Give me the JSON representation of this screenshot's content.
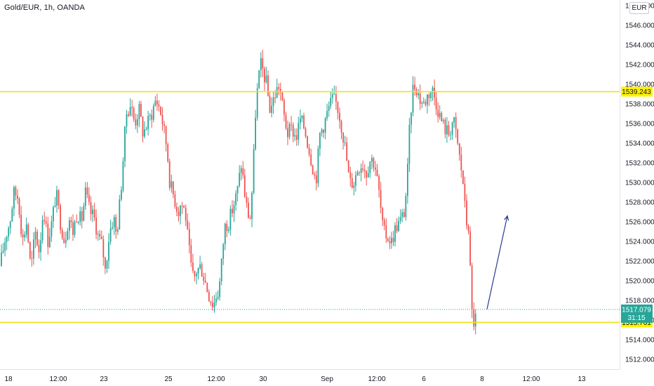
{
  "header": {
    "symbol": "Gold/EUR, 1h, OANDA",
    "currency": "EUR"
  },
  "colors": {
    "up": "#26a69a",
    "down": "#ef5350",
    "level_line": "#f2e018",
    "level_tag": "#fff200",
    "current_tag": "#26a69a",
    "arrow": "#2a3b8f",
    "current_line": "#26a69a"
  },
  "chart_data": {
    "type": "candlestick",
    "title": "Gold/EUR, 1h, OANDA",
    "ylim": [
      1511,
      1549
    ],
    "y_ticks": [
      1512,
      1514,
      1516,
      1518,
      1520,
      1522,
      1524,
      1526,
      1528,
      1530,
      1532,
      1534,
      1536,
      1538,
      1540,
      1542,
      1544,
      1546,
      1548
    ],
    "y_tick_labels": [
      "1512.000",
      "1514.000",
      "1516.000",
      "1518.000",
      "1520.000",
      "1522.000",
      "1524.000",
      "1526.000",
      "1528.000",
      "1530.000",
      "1532.000",
      "1534.000",
      "1536.000",
      "1538.000",
      "1540.000",
      "1542.000",
      "1544.000",
      "1546.000",
      "1548.000"
    ],
    "x_ticks": [
      "18",
      "12:00",
      "23",
      "25",
      "12:00",
      "30",
      "Sep",
      "12:00",
      "6",
      "8",
      "12:00",
      "13"
    ],
    "horizontal_levels": [
      {
        "value": 1539.243,
        "label": "1539.243"
      },
      {
        "value": 1515.761,
        "label": "1515.761"
      }
    ],
    "last_price": {
      "value": 1517.079,
      "label": "1517.079",
      "countdown": "31:15"
    },
    "arrow": {
      "from": 1517.1,
      "to": 1526.6
    },
    "path_points": [
      [
        0,
        1521.5
      ],
      [
        8,
        1524.5
      ],
      [
        14,
        1526
      ],
      [
        20,
        1529
      ],
      [
        26,
        1528.5
      ],
      [
        32,
        1524
      ],
      [
        38,
        1526
      ],
      [
        44,
        1521
      ],
      [
        50,
        1525
      ],
      [
        56,
        1523
      ],
      [
        62,
        1527.5
      ],
      [
        68,
        1524
      ],
      [
        74,
        1526
      ],
      [
        80,
        1529
      ],
      [
        86,
        1526
      ],
      [
        92,
        1524
      ],
      [
        98,
        1526.5
      ],
      [
        104,
        1525
      ],
      [
        110,
        1527
      ],
      [
        116,
        1526
      ],
      [
        122,
        1529
      ],
      [
        128,
        1527
      ],
      [
        134,
        1526.5
      ],
      [
        140,
        1524.5
      ],
      [
        146,
        1523.5
      ],
      [
        150,
        1521
      ],
      [
        156,
        1525
      ],
      [
        162,
        1526.5
      ],
      [
        166,
        1524.5
      ],
      [
        172,
        1529
      ],
      [
        176,
        1533
      ],
      [
        180,
        1537
      ],
      [
        186,
        1538
      ],
      [
        192,
        1536
      ],
      [
        198,
        1537.5
      ],
      [
        204,
        1535
      ],
      [
        210,
        1536
      ],
      [
        216,
        1537
      ],
      [
        222,
        1538.5
      ],
      [
        228,
        1537.5
      ],
      [
        232,
        1536
      ],
      [
        238,
        1533.5
      ],
      [
        242,
        1530
      ],
      [
        248,
        1528.5
      ],
      [
        254,
        1527
      ],
      [
        258,
        1528
      ],
      [
        264,
        1527
      ],
      [
        268,
        1524
      ],
      [
        272,
        1521.5
      ],
      [
        276,
        1520
      ],
      [
        280,
        1521
      ],
      [
        286,
        1521.5
      ],
      [
        292,
        1520
      ],
      [
        298,
        1518.5
      ],
      [
        304,
        1517.5
      ],
      [
        308,
        1518.5
      ],
      [
        312,
        1519
      ],
      [
        316,
        1522
      ],
      [
        320,
        1525.5
      ],
      [
        326,
        1526
      ],
      [
        332,
        1527.5
      ],
      [
        338,
        1529
      ],
      [
        344,
        1532
      ],
      [
        350,
        1528
      ],
      [
        356,
        1526
      ],
      [
        360,
        1530
      ],
      [
        364,
        1537
      ],
      [
        368,
        1540.5
      ],
      [
        372,
        1542
      ],
      [
        376,
        1541
      ],
      [
        380,
        1540
      ],
      [
        384,
        1537.5
      ],
      [
        388,
        1538
      ],
      [
        392,
        1539
      ],
      [
        398,
        1540
      ],
      [
        404,
        1537
      ],
      [
        410,
        1535
      ],
      [
        416,
        1535.5
      ],
      [
        422,
        1534.5
      ],
      [
        428,
        1536.5
      ],
      [
        434,
        1535.5
      ],
      [
        440,
        1533.5
      ],
      [
        446,
        1531.5
      ],
      [
        450,
        1530
      ],
      [
        456,
        1535
      ],
      [
        462,
        1536
      ],
      [
        468,
        1537.5
      ],
      [
        474,
        1538.5
      ],
      [
        480,
        1538
      ],
      [
        486,
        1536
      ],
      [
        492,
        1533.5
      ],
      [
        498,
        1530
      ],
      [
        504,
        1530
      ],
      [
        510,
        1531.5
      ],
      [
        516,
        1532
      ],
      [
        522,
        1531
      ],
      [
        528,
        1532.5
      ],
      [
        534,
        1532
      ],
      [
        540,
        1529
      ],
      [
        546,
        1525
      ],
      [
        552,
        1524.5
      ],
      [
        558,
        1524
      ],
      [
        564,
        1525.5
      ],
      [
        570,
        1526
      ],
      [
        576,
        1527
      ],
      [
        580,
        1530
      ],
      [
        584,
        1536
      ],
      [
        588,
        1539.5
      ],
      [
        592,
        1540
      ],
      [
        598,
        1538.5
      ],
      [
        604,
        1538
      ],
      [
        610,
        1539
      ],
      [
        616,
        1539.5
      ],
      [
        622,
        1538
      ],
      [
        628,
        1536.5
      ],
      [
        634,
        1535.5
      ],
      [
        640,
        1535
      ],
      [
        646,
        1536.5
      ],
      [
        652,
        1534
      ],
      [
        656,
        1532
      ],
      [
        660,
        1530
      ],
      [
        664,
        1526
      ],
      [
        668,
        1525.5
      ],
      [
        672,
        1517
      ],
      [
        676,
        1515.5
      ],
      [
        680,
        1517.1
      ]
    ]
  }
}
